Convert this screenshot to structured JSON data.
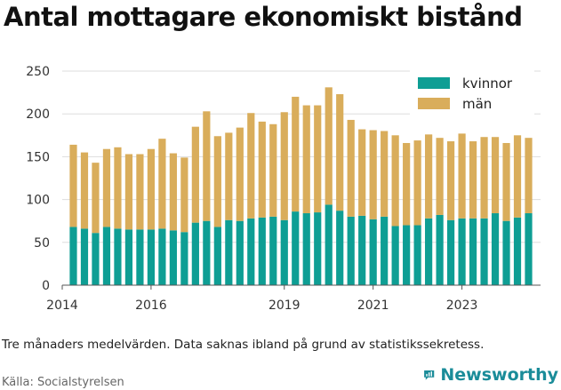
{
  "title": "Antal mottagare ekonomiskt bistånd",
  "note": "Tre månaders medelvärden. Data saknas ibland på grund av statistikssekretess.",
  "source": "Källa: Socialstyrelsen",
  "brand": {
    "name": "Newsworthy",
    "icon": "chart-bubble-icon"
  },
  "colors": {
    "kvinnor": "#0e9e94",
    "man": "#d9ad5b",
    "grid": "#dddddd",
    "brand": "#1a8c99"
  },
  "chart_data": {
    "type": "bar",
    "stacked": true,
    "ylim": [
      0,
      250
    ],
    "yticks": [
      0,
      50,
      100,
      150,
      200,
      250
    ],
    "xlim": [
      2014.0,
      2024.77
    ],
    "xticks": [
      {
        "value": 2014,
        "label": "2014"
      },
      {
        "value": 2016,
        "label": "2016"
      },
      {
        "value": 2019,
        "label": "2019"
      },
      {
        "value": 2021,
        "label": "2021"
      },
      {
        "value": 2023,
        "label": "2023"
      }
    ],
    "grid": true,
    "legend_position": "top-right",
    "x": [
      "2014-04",
      "2014-07",
      "2014-10",
      "2015-01",
      "2015-04",
      "2015-07",
      "2015-10",
      "2016-01",
      "2016-04",
      "2016-07",
      "2016-10",
      "2017-01",
      "2017-04",
      "2017-07",
      "2017-10",
      "2018-01",
      "2018-04",
      "2018-07",
      "2018-10",
      "2019-01",
      "2019-04",
      "2019-07",
      "2019-10",
      "2020-01",
      "2020-04",
      "2020-07",
      "2020-10",
      "2021-01",
      "2021-04",
      "2021-07",
      "2021-10",
      "2022-01",
      "2022-04",
      "2022-07",
      "2022-10",
      "2023-01",
      "2023-04",
      "2023-07",
      "2023-10",
      "2024-01",
      "2024-04",
      "2024-07"
    ],
    "series": [
      {
        "name": "kvinnor",
        "values": [
          68,
          66,
          61,
          68,
          66,
          65,
          65,
          65,
          66,
          64,
          62,
          73,
          75,
          68,
          76,
          75,
          78,
          79,
          80,
          76,
          86,
          84,
          85,
          94,
          87,
          80,
          81,
          77,
          80,
          69,
          70,
          70,
          78,
          82,
          76,
          78,
          78,
          78,
          84,
          75,
          79,
          84
        ]
      },
      {
        "name": "män",
        "values": [
          96,
          89,
          82,
          91,
          95,
          88,
          88,
          94,
          105,
          90,
          87,
          112,
          128,
          106,
          102,
          109,
          123,
          112,
          108,
          126,
          134,
          126,
          125,
          137,
          136,
          113,
          101,
          104,
          100,
          106,
          96,
          99,
          98,
          90,
          92,
          99,
          90,
          95,
          89,
          91,
          96,
          88
        ]
      }
    ]
  }
}
